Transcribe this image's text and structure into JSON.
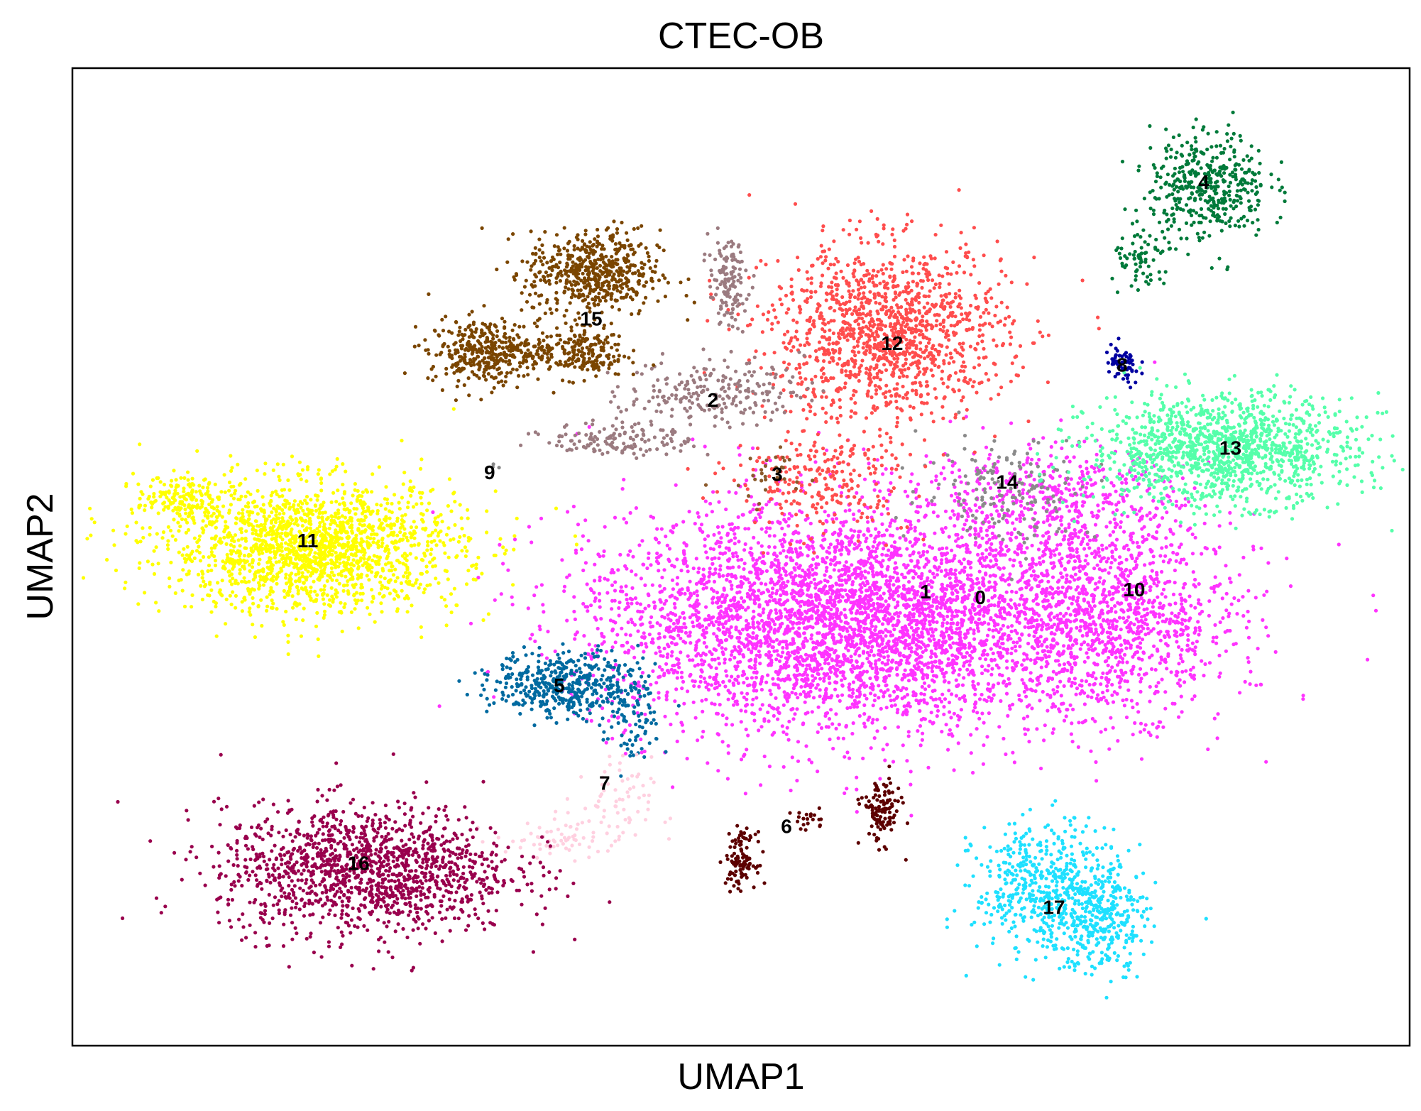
{
  "chart_data": {
    "type": "scatter",
    "title": "CTEC-OB",
    "xlabel": "UMAP1",
    "ylabel": "UMAP2",
    "xlim": [
      0,
      100
    ],
    "ylim": [
      0,
      100
    ],
    "grid": false,
    "ticks": false,
    "legend": "on data",
    "clusters": [
      {
        "name": "0",
        "color": "#ff33ff",
        "label_pos": [
          67.9,
          45.7
        ],
        "blobs": [
          [
            62,
            44,
            18,
            11,
            3200
          ]
        ]
      },
      {
        "name": "1",
        "color": "#ff33ff",
        "label_pos": [
          63.8,
          46.3
        ],
        "blobs": [
          [
            53,
            43,
            14,
            10,
            1500
          ]
        ]
      },
      {
        "name": "10",
        "color": "#ff33ff",
        "label_pos": [
          79.4,
          46.5
        ],
        "blobs": [
          [
            78,
            44,
            8,
            9,
            900
          ],
          [
            73,
            56,
            9,
            5,
            400
          ]
        ]
      },
      {
        "name": "14",
        "color": "#8a8a8a",
        "label_pos": [
          69.9,
          57.5
        ],
        "blobs": [
          [
            70,
            57,
            6,
            5,
            160
          ]
        ]
      },
      {
        "name": "12",
        "color": "#ff4d4d",
        "label_pos": [
          61.3,
          71.7
        ],
        "blobs": [
          [
            61,
            73,
            8,
            8,
            1300
          ],
          [
            56,
            58,
            6,
            5,
            250
          ]
        ]
      },
      {
        "name": "3",
        "color": "#8b5a2b",
        "label_pos": [
          52.7,
          58.3
        ],
        "blobs": [
          [
            52,
            58,
            3,
            3,
            30
          ]
        ]
      },
      {
        "name": "2",
        "color": "#9b7b80",
        "label_pos": [
          47.9,
          65.9
        ],
        "blobs": [
          [
            49,
            78,
            1.3,
            4,
            130
          ],
          [
            48,
            67,
            6,
            3,
            220
          ],
          [
            41,
            62,
            5,
            1.6,
            140
          ]
        ]
      },
      {
        "name": "15",
        "color": "#7a4500",
        "label_pos": [
          38.8,
          74.2
        ],
        "blobs": [
          [
            39,
            79,
            4.5,
            4,
            550
          ],
          [
            31,
            71,
            4,
            3,
            380
          ],
          [
            38,
            71,
            3,
            2.5,
            200
          ]
        ]
      },
      {
        "name": "4",
        "color": "#007a3a",
        "label_pos": [
          84.6,
          88.2
        ],
        "blobs": [
          [
            85,
            88,
            4,
            5,
            420
          ],
          [
            80,
            80,
            2,
            3,
            70
          ]
        ]
      },
      {
        "name": "8",
        "color": "#0000a0",
        "label_pos": [
          78.5,
          69.5
        ],
        "blobs": [
          [
            78.5,
            69.5,
            1.2,
            2,
            60
          ]
        ]
      },
      {
        "name": "13",
        "color": "#55ffaa",
        "label_pos": [
          86.6,
          61.0
        ],
        "blobs": [
          [
            86,
            61,
            9,
            5,
            1300
          ]
        ]
      },
      {
        "name": "9",
        "color": "#888888",
        "label_pos": [
          31.2,
          58.5
        ],
        "blobs": [
          [
            31.5,
            59,
            0.4,
            0.4,
            3
          ]
        ]
      },
      {
        "name": "11",
        "color": "#ffff00",
        "label_pos": [
          17.6,
          51.5
        ],
        "blobs": [
          [
            18,
            51,
            10,
            6,
            1800
          ],
          [
            8,
            56,
            3,
            2,
            150
          ]
        ]
      },
      {
        "name": "5",
        "color": "#006aa0",
        "label_pos": [
          36.4,
          36.7
        ],
        "blobs": [
          [
            37,
            37,
            5,
            3,
            450
          ],
          [
            42,
            33,
            2,
            5,
            80
          ]
        ]
      },
      {
        "name": "7",
        "color": "#ffd0e0",
        "label_pos": [
          39.8,
          26.7
        ],
        "blobs": [
          [
            40,
            24,
            3,
            5,
            80
          ],
          [
            36,
            21,
            4,
            1.5,
            50
          ]
        ]
      },
      {
        "name": "16",
        "color": "#99004d",
        "label_pos": [
          21.4,
          18.5
        ],
        "blobs": [
          [
            22,
            18,
            10,
            6,
            1400
          ]
        ]
      },
      {
        "name": "6",
        "color": "#5c0000",
        "label_pos": [
          53.4,
          22.3
        ],
        "blobs": [
          [
            50,
            19,
            1,
            2.5,
            110
          ],
          [
            60.5,
            24,
            1.3,
            3,
            120
          ],
          [
            55,
            23,
            1.5,
            1,
            20
          ]
        ]
      },
      {
        "name": "17",
        "color": "#1ee0ff",
        "label_pos": [
          73.4,
          14.0
        ],
        "blobs": [
          [
            73,
            16,
            5,
            6,
            550
          ],
          [
            77,
            13,
            3,
            5,
            280
          ]
        ]
      }
    ]
  }
}
